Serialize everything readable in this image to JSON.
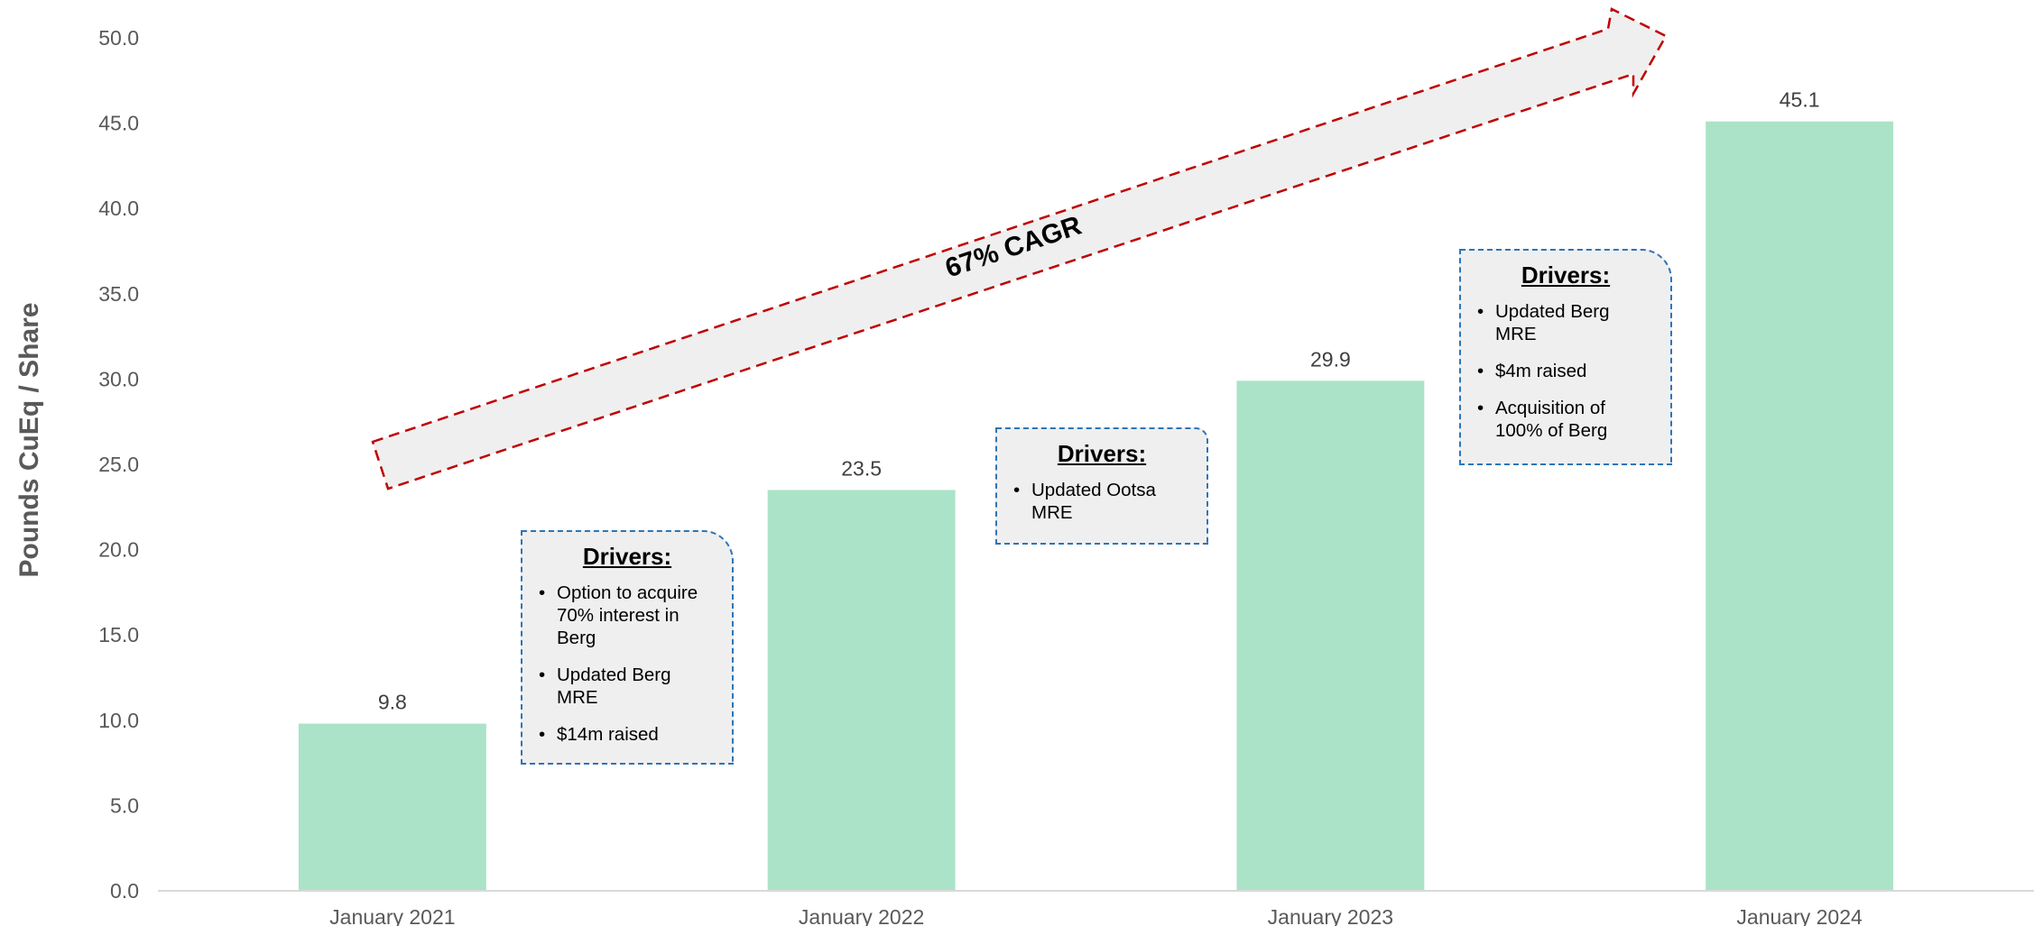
{
  "chart_data": {
    "type": "bar",
    "title": "",
    "xlabel": "",
    "ylabel": "Pounds CuEq / Share",
    "categories": [
      "January 2021",
      "January 2022",
      "January 2023",
      "January 2024"
    ],
    "values": [
      9.8,
      23.5,
      29.9,
      45.1
    ],
    "value_labels": [
      "9.8",
      "23.5",
      "29.9",
      "45.1"
    ],
    "ylim": [
      0,
      50
    ],
    "yticks": [
      "0.0",
      "5.0",
      "10.0",
      "15.0",
      "20.0",
      "25.0",
      "30.0",
      "35.0",
      "40.0",
      "45.0",
      "50.0"
    ],
    "grid": false,
    "legend": "none",
    "bar_color": "#abe3c8",
    "annotation": "67% CAGR",
    "annotation_colors": {
      "arrow_fill": "#efefef",
      "arrow_border": "#c00000"
    }
  },
  "drivers": [
    {
      "title": "Drivers:",
      "items": [
        "Option to acquire 70% interest in Berg",
        "Updated Berg MRE",
        "$14m raised"
      ]
    },
    {
      "title": "Drivers:",
      "items": [
        "Updated Ootsa MRE"
      ]
    },
    {
      "title": "Drivers:",
      "items": [
        "Updated Berg MRE",
        "$4m raised",
        "Acquisition of 100% of Berg"
      ]
    }
  ],
  "colors": {
    "driver_border": "#2e75b6",
    "driver_fill": "#efefef",
    "axis": "#d9d9d9",
    "tick_text": "#595959"
  }
}
